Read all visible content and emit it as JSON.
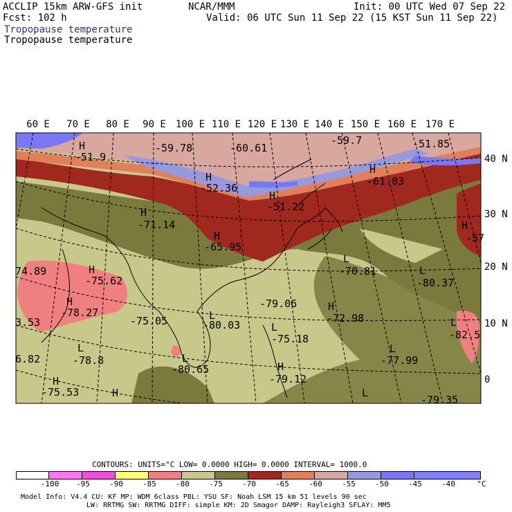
{
  "header": {
    "model": "ACCLIP 15km ARW-GFS init",
    "org": "NCAR/MMM",
    "init": "Init: 00 UTC Wed 07 Sep 22",
    "fcst": "Fcst:  102 h",
    "valid": "Valid: 06 UTC Sun 11 Sep 22 (15 KST Sun 11 Sep 22)",
    "field_blue": "Tropopause temperature",
    "field_black": "Tropopause temperature"
  },
  "map": {
    "lon_labels": [
      "60 E",
      "70 E",
      "80 E",
      "90 E",
      "100 E",
      "110 E",
      "120 E",
      "130 E",
      "140 E",
      "150 E",
      "160 E",
      "170 E"
    ],
    "lat_labels": [
      "40 N",
      "30 N",
      "20 N",
      "10 N",
      "0"
    ],
    "features": [
      {
        "id": "f1",
        "text": "H",
        "kind": "high"
      },
      {
        "id": "f2",
        "text": "-51.9",
        "kind": "value"
      },
      {
        "id": "f3",
        "text": "-59.78",
        "kind": "value"
      },
      {
        "id": "f4",
        "text": "-60.61",
        "kind": "value"
      },
      {
        "id": "f5",
        "text": "-59.7",
        "kind": "value"
      },
      {
        "id": "f6",
        "text": "-51.85",
        "kind": "value"
      },
      {
        "id": "f7",
        "text": "H",
        "kind": "high"
      },
      {
        "id": "f8",
        "text": "-52.36",
        "kind": "value"
      },
      {
        "id": "f9",
        "text": "H",
        "kind": "high"
      },
      {
        "id": "f10",
        "text": "-61.03",
        "kind": "value"
      },
      {
        "id": "f11",
        "text": "H",
        "kind": "high"
      },
      {
        "id": "f12",
        "text": "-51.22",
        "kind": "value"
      },
      {
        "id": "f13",
        "text": "H",
        "kind": "high"
      },
      {
        "id": "f14",
        "text": "-71.14",
        "kind": "value"
      },
      {
        "id": "f15",
        "text": "H",
        "kind": "high"
      },
      {
        "id": "f16",
        "text": "-65.95",
        "kind": "value"
      },
      {
        "id": "f17",
        "text": "H",
        "kind": "high"
      },
      {
        "id": "f18",
        "text": "-57",
        "kind": "value"
      },
      {
        "id": "f19",
        "text": "74.89",
        "kind": "value"
      },
      {
        "id": "f20",
        "text": "H",
        "kind": "high"
      },
      {
        "id": "f21",
        "text": "-75.62",
        "kind": "value"
      },
      {
        "id": "f22",
        "text": "L",
        "kind": "low"
      },
      {
        "id": "f23",
        "text": "-70.81",
        "kind": "value"
      },
      {
        "id": "f24",
        "text": "L",
        "kind": "low"
      },
      {
        "id": "f25",
        "text": "-80.37",
        "kind": "value"
      },
      {
        "id": "f26",
        "text": "H",
        "kind": "high"
      },
      {
        "id": "f27",
        "text": "-78.27",
        "kind": "value"
      },
      {
        "id": "f28",
        "text": "-79.06",
        "kind": "value"
      },
      {
        "id": "f29",
        "text": "H",
        "kind": "high"
      },
      {
        "id": "f30",
        "text": "-72.98",
        "kind": "value"
      },
      {
        "id": "f31",
        "text": "-75.05",
        "kind": "value"
      },
      {
        "id": "f32",
        "text": "L",
        "kind": "low"
      },
      {
        "id": "f33",
        "text": "-80.03",
        "kind": "value"
      },
      {
        "id": "f34",
        "text": "3.53",
        "kind": "value"
      },
      {
        "id": "f35",
        "text": "L",
        "kind": "low"
      },
      {
        "id": "f36",
        "text": "-82.5",
        "kind": "value"
      },
      {
        "id": "f37",
        "text": "L",
        "kind": "low"
      },
      {
        "id": "f38",
        "text": "-75.18",
        "kind": "value"
      },
      {
        "id": "f39",
        "text": "L",
        "kind": "low"
      },
      {
        "id": "f40",
        "text": "-78.8",
        "kind": "value"
      },
      {
        "id": "f41",
        "text": "L",
        "kind": "low"
      },
      {
        "id": "f42",
        "text": "-77.99",
        "kind": "value"
      },
      {
        "id": "f43",
        "text": "6.82",
        "kind": "value"
      },
      {
        "id": "f44",
        "text": "L",
        "kind": "low"
      },
      {
        "id": "f45",
        "text": "-80.65",
        "kind": "value"
      },
      {
        "id": "f46",
        "text": "H",
        "kind": "high"
      },
      {
        "id": "f47",
        "text": "-79.12",
        "kind": "value"
      },
      {
        "id": "f48",
        "text": "H",
        "kind": "high"
      },
      {
        "id": "f49",
        "text": "-75.53",
        "kind": "value"
      },
      {
        "id": "f50",
        "text": "H",
        "kind": "high"
      },
      {
        "id": "f51",
        "text": "L",
        "kind": "low"
      },
      {
        "id": "f52",
        "text": "-79.35",
        "kind": "value"
      }
    ]
  },
  "legend": {
    "contours_line": "CONTOURS:  UNITS=°C  LOW=  0.0000        HIGH=  0.0000        INTERVAL=   1000.0",
    "bins": [
      {
        "color": "#ffffff"
      },
      {
        "color": "#ff78f0"
      },
      {
        "color": "#f050d8"
      },
      {
        "color": "#ffff78"
      },
      {
        "color": "#f08080"
      },
      {
        "color": "#c8c88a"
      },
      {
        "color": "#7a7a3c"
      },
      {
        "color": "#a0281e"
      },
      {
        "color": "#e0805a"
      },
      {
        "color": "#d8a8a0"
      },
      {
        "color": "#9898dc"
      },
      {
        "color": "#7878f4"
      },
      {
        "color": "#8080ff"
      }
    ],
    "ticks": [
      "-100",
      "-95",
      "-90",
      "-85",
      "-80",
      "-75",
      "-70",
      "-65",
      "-60",
      "-55",
      "-50",
      "-45",
      "-40",
      "°C"
    ]
  },
  "footer": {
    "line1": "Model Info: V4.4      CU: KF      MP: WDM 6class  PBL: YSU       SF: Noah LSM     15 km    51 levels   90 sec",
    "line2": "LW: RRTMG    SW: RRTMG  DIFF: simple KM: 2D Smagor DAMP: Rayleigh3  SFLAY: MM5"
  },
  "colors": {
    "tan": "#c8c88a",
    "olive": "#7a7a3c",
    "darkred": "#a0281e",
    "orange": "#e0805a",
    "rosetan": "#d8a8a0",
    "lavender": "#9898dc",
    "blue": "#7878f4",
    "pink": "#f08080",
    "field_blue_text": "#303090"
  }
}
